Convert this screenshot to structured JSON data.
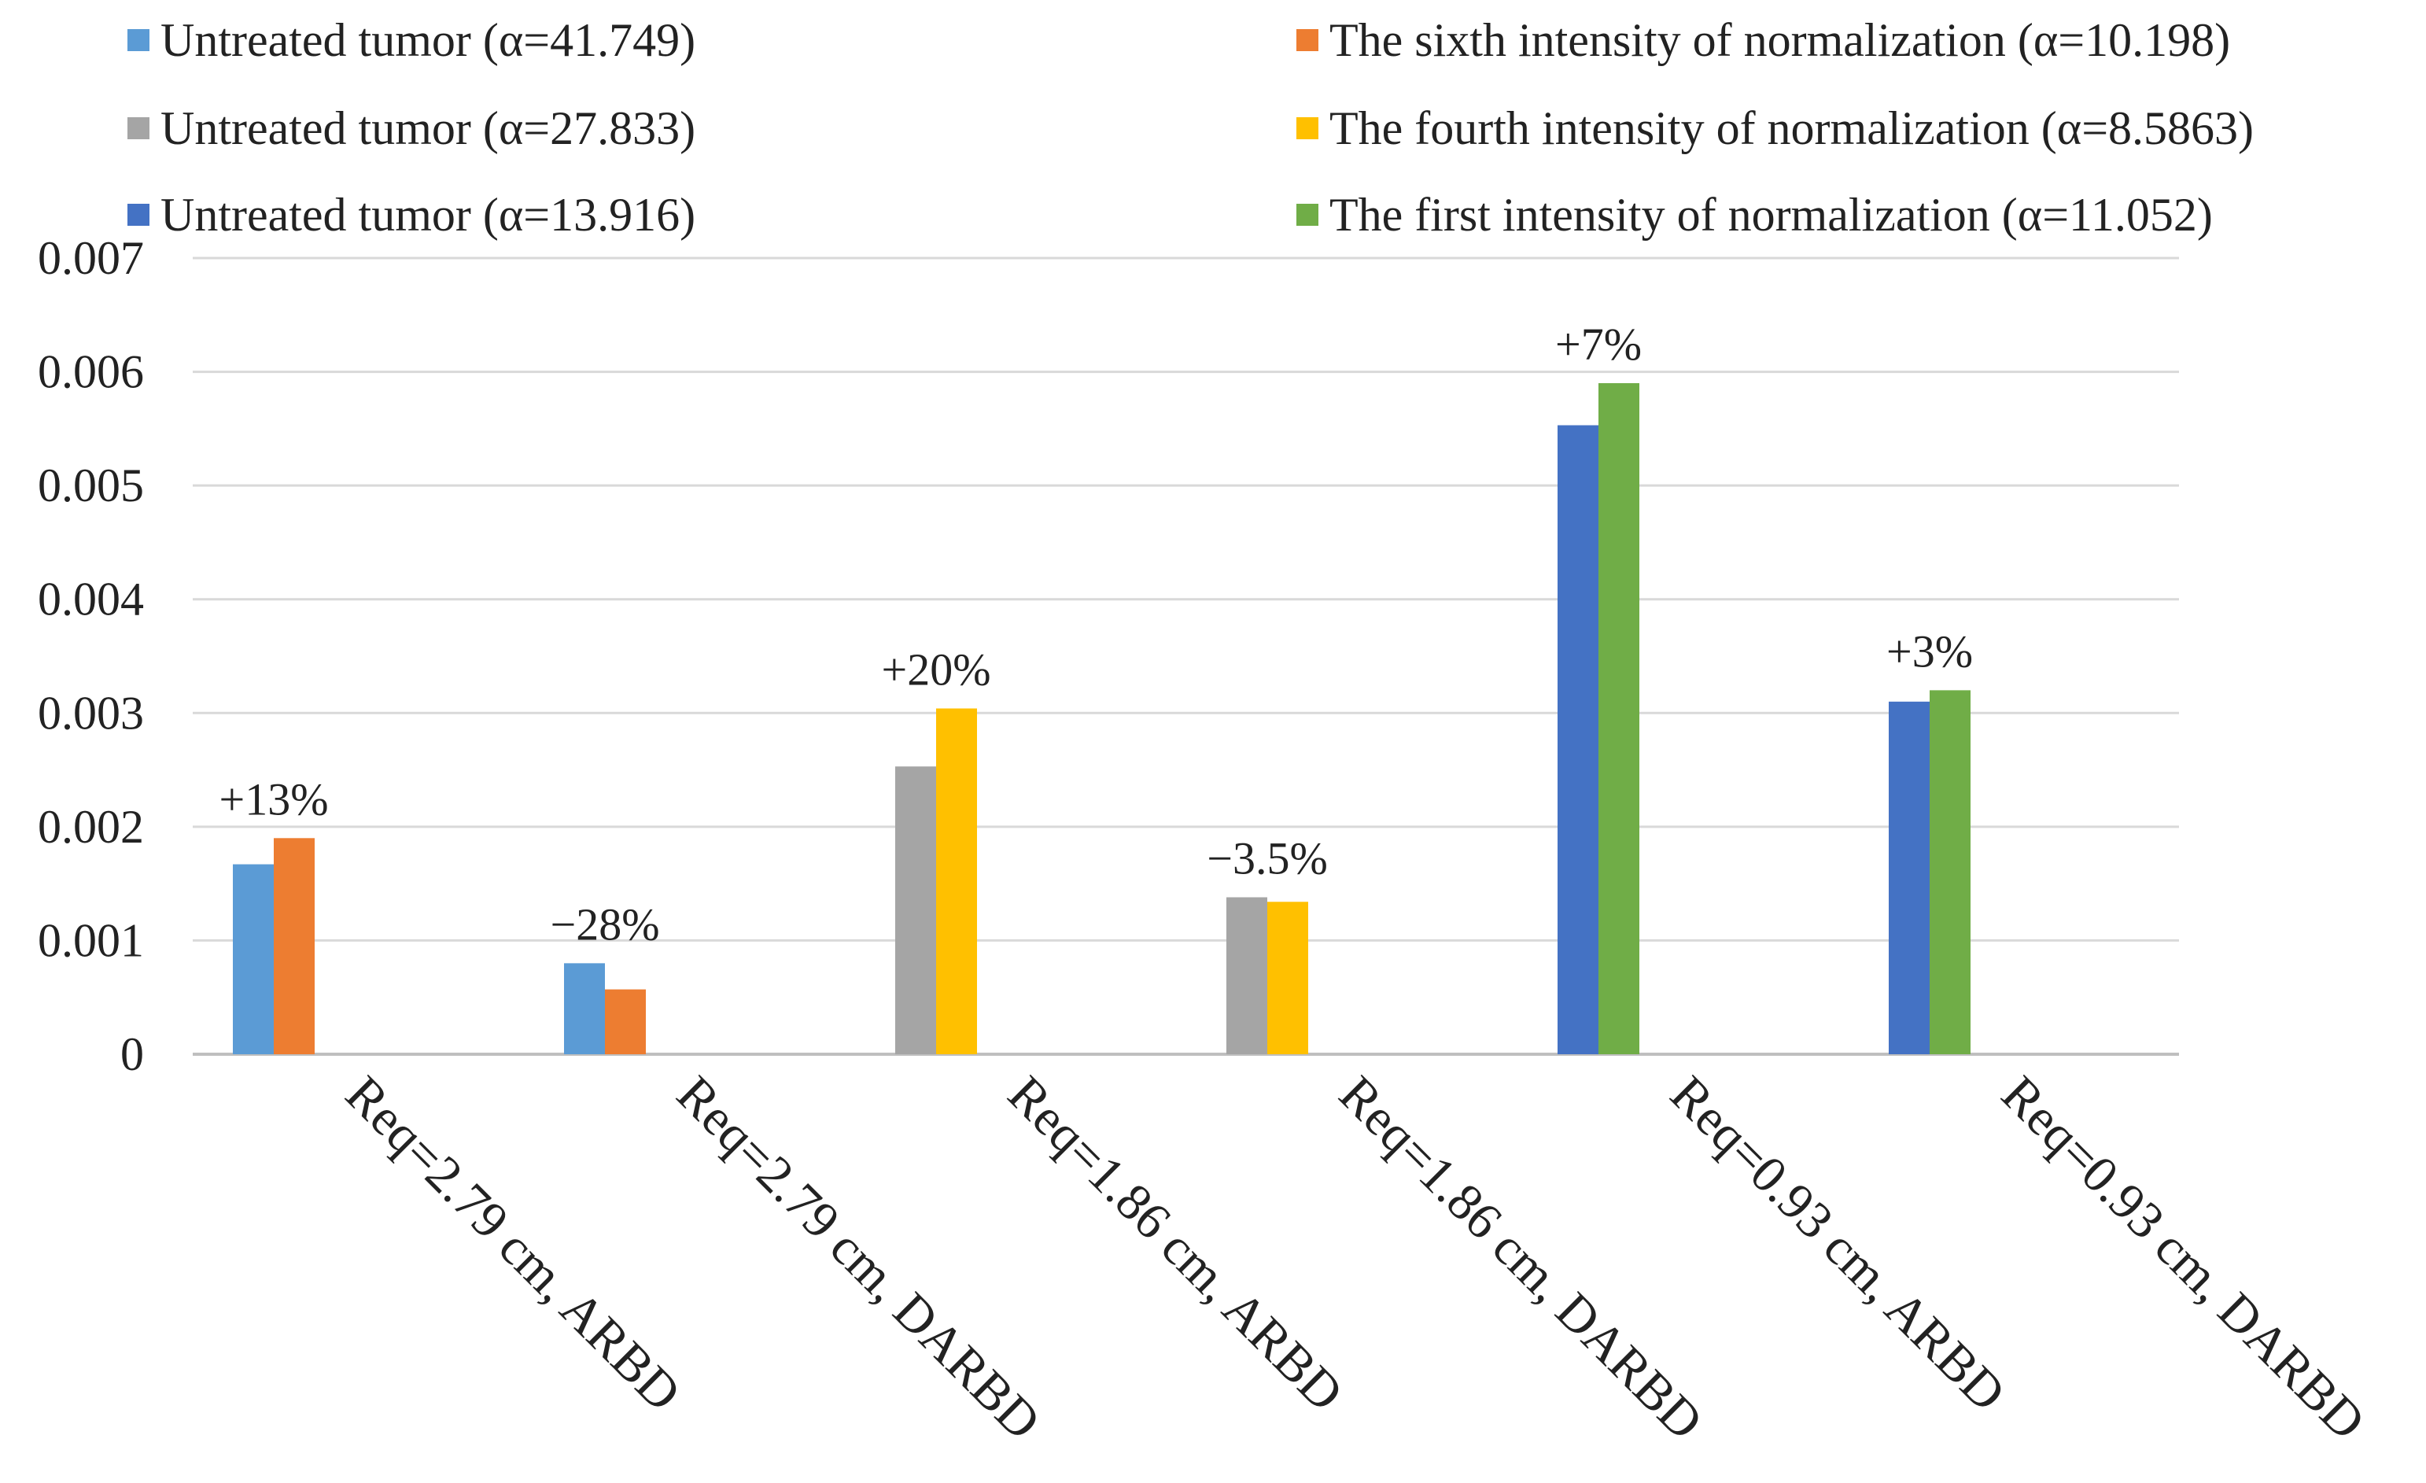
{
  "chart_data": {
    "type": "bar",
    "title": "",
    "xlabel": "",
    "ylabel": "",
    "ylim": [
      0,
      0.007
    ],
    "yticks": [
      0,
      0.001,
      0.002,
      0.003,
      0.004,
      0.005,
      0.006,
      0.007
    ],
    "ytick_labels": [
      "0",
      "0.001",
      "0.002",
      "0.003",
      "0.004",
      "0.005",
      "0.006",
      "0.007"
    ],
    "grid": true,
    "legend_position": "top",
    "categories": [
      "Req=2.79 cm, ARBD",
      "Req=2.79 cm, DARBD",
      "Req=1.86 cm, ARBD",
      "Req=1.86 cm, DARBD",
      "Req=0.93 cm, ARBD",
      "Req=0.93 cm, DARBD"
    ],
    "legend": [
      {
        "name": "Untreated tumor (α=41.749)",
        "color": "#5B9BD5"
      },
      {
        "name": "The  sixth intensity of normalization (α=10.198)",
        "color": "#ED7D31"
      },
      {
        "name": "Untreated tumor (α=27.833)",
        "color": "#A5A5A5"
      },
      {
        "name": "The  fourth intensity of normalization (α=8.5863)",
        "color": "#FFC000"
      },
      {
        "name": "Untreated tumor (α=13.916)",
        "color": "#4472C4"
      },
      {
        "name": "The  first intensity of normalization (α=11.052)",
        "color": "#70AD47"
      }
    ],
    "groups": [
      {
        "category": "Req=2.79 cm, ARBD",
        "bars": [
          {
            "series": "Untreated tumor (α=41.749)",
            "value": 0.00167,
            "color": "#5B9BD5"
          },
          {
            "series": "The  sixth intensity of normalization (α=10.198)",
            "value": 0.0019,
            "color": "#ED7D31"
          }
        ],
        "annotation": "+13%"
      },
      {
        "category": "Req=2.79 cm, DARBD",
        "bars": [
          {
            "series": "Untreated tumor (α=41.749)",
            "value": 0.0008,
            "color": "#5B9BD5"
          },
          {
            "series": "The  sixth intensity of normalization (α=10.198)",
            "value": 0.00057,
            "color": "#ED7D31"
          }
        ],
        "annotation": "−28%"
      },
      {
        "category": "Req=1.86 cm, ARBD",
        "bars": [
          {
            "series": "Untreated tumor (α=27.833)",
            "value": 0.00253,
            "color": "#A5A5A5"
          },
          {
            "series": "The  fourth intensity of normalization (α=8.5863)",
            "value": 0.00304,
            "color": "#FFC000"
          }
        ],
        "annotation": "+20%"
      },
      {
        "category": "Req=1.86 cm, DARBD",
        "bars": [
          {
            "series": "Untreated tumor (α=27.833)",
            "value": 0.00138,
            "color": "#A5A5A5"
          },
          {
            "series": "The  fourth intensity of normalization (α=8.5863)",
            "value": 0.00134,
            "color": "#FFC000"
          }
        ],
        "annotation": "−3.5%"
      },
      {
        "category": "Req=0.93 cm, ARBD",
        "bars": [
          {
            "series": "Untreated tumor (α=13.916)",
            "value": 0.00553,
            "color": "#4472C4"
          },
          {
            "series": "The  first intensity of normalization (α=11.052)",
            "value": 0.0059,
            "color": "#70AD47"
          }
        ],
        "annotation": "+7%"
      },
      {
        "category": "Req=0.93 cm, DARBD",
        "bars": [
          {
            "series": "Untreated tumor (α=13.916)",
            "value": 0.0031,
            "color": "#4472C4"
          },
          {
            "series": "The  first intensity of normalization (α=11.052)",
            "value": 0.0032,
            "color": "#70AD47"
          }
        ],
        "annotation": "+3%"
      }
    ]
  }
}
